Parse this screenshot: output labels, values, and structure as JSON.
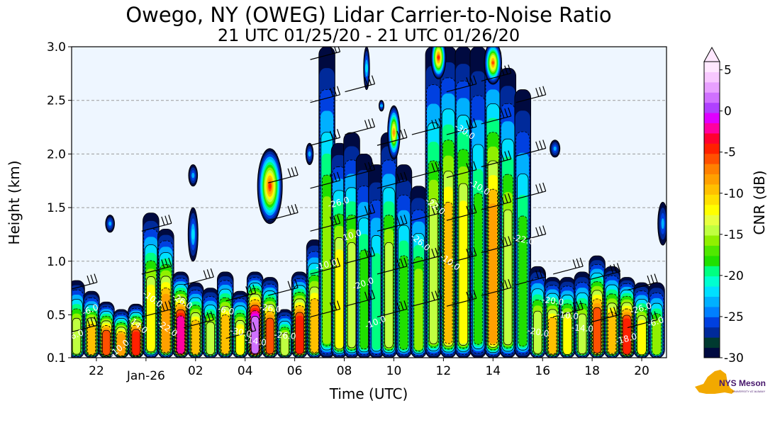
{
  "chart_data": {
    "type": "heatmap",
    "title": "Owego, NY (OWEG) Lidar Carrier-to-Noise Ratio",
    "subtitle": "21 UTC 01/25/20 - 21 UTC 01/26/20",
    "xlabel": "Time (UTC)",
    "ylabel": "Height (km)",
    "colorbar_label": "CNR (dB)",
    "xlim": [
      21,
      45
    ],
    "ylim": [
      0.1,
      3.0
    ],
    "x_ticks": [
      {
        "value": 22,
        "label": "22"
      },
      {
        "value": 24,
        "label": "Jan-26"
      },
      {
        "value": 26,
        "label": "02"
      },
      {
        "value": 28,
        "label": "04"
      },
      {
        "value": 30,
        "label": "06"
      },
      {
        "value": 32,
        "label": "08"
      },
      {
        "value": 34,
        "label": "10"
      },
      {
        "value": 36,
        "label": "12"
      },
      {
        "value": 38,
        "label": "14"
      },
      {
        "value": 40,
        "label": "16"
      },
      {
        "value": 42,
        "label": "18"
      },
      {
        "value": 44,
        "label": "20"
      }
    ],
    "y_ticks": [
      {
        "value": 0.1,
        "label": "0.1"
      },
      {
        "value": 0.5,
        "label": "0.5"
      },
      {
        "value": 1.0,
        "label": "1.0"
      },
      {
        "value": 1.5,
        "label": "1.5"
      },
      {
        "value": 2.0,
        "label": "2.0"
      },
      {
        "value": 2.5,
        "label": "2.5"
      },
      {
        "value": 3.0,
        "label": "3.0"
      }
    ],
    "grid": "horizontal dashed",
    "colorbar": {
      "range": [
        -30,
        6
      ],
      "ticks": [
        {
          "value": 5,
          "label": "5"
        },
        {
          "value": 0,
          "label": "0"
        },
        {
          "value": -5,
          "label": "-5"
        },
        {
          "value": -10,
          "label": "-10"
        },
        {
          "value": -15,
          "label": "-15"
        },
        {
          "value": -20,
          "label": "-20"
        },
        {
          "value": -25,
          "label": "-25"
        },
        {
          "value": -30,
          "label": "-30"
        }
      ],
      "colors": [
        "#000a40",
        "#003a30",
        "#002a9a",
        "#0040e0",
        "#0080ff",
        "#00b0ff",
        "#00e0ff",
        "#00ffd0",
        "#00ff80",
        "#20e000",
        "#50e800",
        "#90f000",
        "#c0ff40",
        "#e8ff40",
        "#ffff00",
        "#ffe000",
        "#ffc000",
        "#ffa000",
        "#ff8000",
        "#ff5000",
        "#ff2000",
        "#ff0030",
        "#ff00a0",
        "#e000ff",
        "#b040ff",
        "#d070ff",
        "#e8a0ff",
        "#f8c8ff",
        "#ffe8ff"
      ]
    },
    "background_color": "#eef6ff",
    "contour_labels": [
      "-10.0",
      "-6.0",
      "-10.0",
      "-26.0",
      "-22.0",
      "-18.0",
      "-14.0",
      "-30.0",
      "-26.0",
      "-22.0",
      "-20.0",
      "-26.0",
      "-10.0",
      "-14.0",
      "-10.0",
      "-10.0",
      "-20.0",
      "-6.0",
      "-22.0",
      "-26.0",
      "-20.0",
      "-30.0",
      "-10.0",
      "-6.0",
      "-26.0",
      "-26.0",
      "-10.0",
      "-10.0",
      "-14.0",
      "-6.0"
    ],
    "cloud_columns": [
      {
        "t": 21.2,
        "base": 0.1,
        "top": 0.82,
        "peak": -14
      },
      {
        "t": 21.8,
        "base": 0.1,
        "top": 0.72,
        "peak": -10
      },
      {
        "t": 22.4,
        "base": 0.1,
        "top": 0.62,
        "peak": -6
      },
      {
        "t": 23.0,
        "base": 0.1,
        "top": 0.55,
        "peak": -8
      },
      {
        "t": 23.6,
        "base": 0.1,
        "top": 0.6,
        "peak": -3
      },
      {
        "t": 24.2,
        "base": 0.1,
        "top": 1.45,
        "peak": -12
      },
      {
        "t": 24.8,
        "base": 0.1,
        "top": 1.3,
        "peak": -8
      },
      {
        "t": 25.4,
        "base": 0.1,
        "top": 0.9,
        "peak": -2
      },
      {
        "t": 26.0,
        "base": 0.1,
        "top": 0.8,
        "peak": -10
      },
      {
        "t": 26.6,
        "base": 0.1,
        "top": 0.75,
        "peak": -14
      },
      {
        "t": 27.2,
        "base": 0.1,
        "top": 0.9,
        "peak": -10
      },
      {
        "t": 27.8,
        "base": 0.1,
        "top": 0.72,
        "peak": -12
      },
      {
        "t": 28.4,
        "base": 0.1,
        "top": 0.9,
        "peak": 2
      },
      {
        "t": 29.0,
        "base": 0.1,
        "top": 0.85,
        "peak": -6
      },
      {
        "t": 29.6,
        "base": 0.1,
        "top": 0.55,
        "peak": -14
      },
      {
        "t": 30.2,
        "base": 0.1,
        "top": 0.9,
        "peak": -4
      },
      {
        "t": 30.8,
        "base": 0.1,
        "top": 1.2,
        "peak": -10
      },
      {
        "t": 31.3,
        "base": 0.1,
        "top": 3.0,
        "peak": -16
      },
      {
        "t": 31.8,
        "base": 0.1,
        "top": 2.1,
        "peak": -12
      },
      {
        "t": 32.3,
        "base": 0.1,
        "top": 2.2,
        "peak": -14
      },
      {
        "t": 32.8,
        "base": 0.1,
        "top": 2.0,
        "peak": -18
      },
      {
        "t": 33.3,
        "base": 0.1,
        "top": 1.9,
        "peak": -20
      },
      {
        "t": 33.8,
        "base": 0.1,
        "top": 2.2,
        "peak": -14
      },
      {
        "t": 34.4,
        "base": 0.1,
        "top": 1.9,
        "peak": -18
      },
      {
        "t": 35.0,
        "base": 0.1,
        "top": 1.7,
        "peak": -16
      },
      {
        "t": 35.6,
        "base": 0.1,
        "top": 3.0,
        "peak": -14
      },
      {
        "t": 36.2,
        "base": 0.1,
        "top": 3.0,
        "peak": -10
      },
      {
        "t": 36.8,
        "base": 0.1,
        "top": 3.0,
        "peak": -12
      },
      {
        "t": 37.4,
        "base": 0.1,
        "top": 3.0,
        "peak": -18
      },
      {
        "t": 38.0,
        "base": 0.1,
        "top": 3.0,
        "peak": -8
      },
      {
        "t": 38.6,
        "base": 0.1,
        "top": 2.8,
        "peak": -14
      },
      {
        "t": 39.2,
        "base": 0.1,
        "top": 2.6,
        "peak": -18
      },
      {
        "t": 39.8,
        "base": 0.1,
        "top": 0.95,
        "peak": -14
      },
      {
        "t": 40.4,
        "base": 0.1,
        "top": 0.85,
        "peak": -10
      },
      {
        "t": 41.0,
        "base": 0.1,
        "top": 0.85,
        "peak": -12
      },
      {
        "t": 41.6,
        "base": 0.1,
        "top": 0.9,
        "peak": -14
      },
      {
        "t": 42.2,
        "base": 0.1,
        "top": 1.05,
        "peak": -6
      },
      {
        "t": 42.8,
        "base": 0.1,
        "top": 0.95,
        "peak": -10
      },
      {
        "t": 43.4,
        "base": 0.1,
        "top": 0.85,
        "peak": -4
      },
      {
        "t": 44.0,
        "base": 0.1,
        "top": 0.8,
        "peak": -12
      },
      {
        "t": 44.6,
        "base": 0.1,
        "top": 0.8,
        "peak": -16
      }
    ],
    "cloud_blobs": [
      {
        "t": 22.55,
        "h": 1.35,
        "dt": 0.18,
        "dh": 0.08,
        "peak": -24
      },
      {
        "t": 25.9,
        "h": 1.8,
        "dt": 0.18,
        "dh": 0.1,
        "peak": -24
      },
      {
        "t": 25.9,
        "h": 1.25,
        "dt": 0.2,
        "dh": 0.25,
        "peak": -22
      },
      {
        "t": 29.0,
        "h": 1.7,
        "dt": 0.5,
        "dh": 0.35,
        "peak": -4
      },
      {
        "t": 30.6,
        "h": 2.0,
        "dt": 0.15,
        "dh": 0.1,
        "peak": -24
      },
      {
        "t": 32.9,
        "h": 2.8,
        "dt": 0.12,
        "dh": 0.2,
        "peak": -22
      },
      {
        "t": 34.0,
        "h": 2.2,
        "dt": 0.25,
        "dh": 0.25,
        "peak": -8
      },
      {
        "t": 33.5,
        "h": 2.45,
        "dt": 0.1,
        "dh": 0.05,
        "peak": -24
      },
      {
        "t": 40.5,
        "h": 2.05,
        "dt": 0.2,
        "dh": 0.08,
        "peak": -24
      },
      {
        "t": 44.85,
        "h": 1.35,
        "dt": 0.2,
        "dh": 0.2,
        "peak": -24
      },
      {
        "t": 35.8,
        "h": 2.9,
        "dt": 0.3,
        "dh": 0.2,
        "peak": -4
      },
      {
        "t": 38.0,
        "h": 2.85,
        "dt": 0.35,
        "dh": 0.2,
        "peak": -6
      }
    ],
    "wind_barbs": [
      {
        "t": 21.4,
        "h": 0.75
      },
      {
        "t": 21.4,
        "h": 0.35
      },
      {
        "t": 24.4,
        "h": 1.3
      },
      {
        "t": 24.4,
        "h": 0.9
      },
      {
        "t": 24.4,
        "h": 0.5
      },
      {
        "t": 26.1,
        "h": 0.8
      },
      {
        "t": 26.1,
        "h": 0.4
      },
      {
        "t": 27.8,
        "h": 0.65
      },
      {
        "t": 27.8,
        "h": 0.3
      },
      {
        "t": 29.5,
        "h": 1.75
      },
      {
        "t": 29.5,
        "h": 1.4
      },
      {
        "t": 29.5,
        "h": 0.7
      },
      {
        "t": 31.2,
        "h": 2.9
      },
      {
        "t": 31.2,
        "h": 2.5
      },
      {
        "t": 31.2,
        "h": 2.1
      },
      {
        "t": 31.2,
        "h": 1.7
      },
      {
        "t": 31.2,
        "h": 1.3
      },
      {
        "t": 31.2,
        "h": 0.9
      },
      {
        "t": 31.2,
        "h": 0.5
      },
      {
        "t": 32.6,
        "h": 2.6
      },
      {
        "t": 32.6,
        "h": 2.2
      },
      {
        "t": 32.6,
        "h": 1.8
      },
      {
        "t": 32.6,
        "h": 1.4
      },
      {
        "t": 32.6,
        "h": 1.0
      },
      {
        "t": 32.6,
        "h": 0.6
      },
      {
        "t": 33.9,
        "h": 2.1
      },
      {
        "t": 33.9,
        "h": 1.7
      },
      {
        "t": 33.9,
        "h": 1.3
      },
      {
        "t": 33.9,
        "h": 0.9
      },
      {
        "t": 33.9,
        "h": 0.5
      },
      {
        "t": 35.3,
        "h": 2.2
      },
      {
        "t": 35.3,
        "h": 1.8
      },
      {
        "t": 35.3,
        "h": 1.4
      },
      {
        "t": 35.3,
        "h": 1.0
      },
      {
        "t": 35.3,
        "h": 0.6
      },
      {
        "t": 36.7,
        "h": 2.6
      },
      {
        "t": 36.7,
        "h": 2.2
      },
      {
        "t": 36.7,
        "h": 1.8
      },
      {
        "t": 36.7,
        "h": 1.4
      },
      {
        "t": 36.7,
        "h": 1.0
      },
      {
        "t": 36.7,
        "h": 0.6
      },
      {
        "t": 38.1,
        "h": 2.7
      },
      {
        "t": 38.1,
        "h": 2.3
      },
      {
        "t": 38.1,
        "h": 1.9
      },
      {
        "t": 38.1,
        "h": 1.5
      },
      {
        "t": 38.1,
        "h": 1.1
      },
      {
        "t": 38.1,
        "h": 0.7
      },
      {
        "t": 39.5,
        "h": 2.5
      },
      {
        "t": 39.5,
        "h": 2.0
      },
      {
        "t": 39.5,
        "h": 1.6
      },
      {
        "t": 39.5,
        "h": 1.2
      },
      {
        "t": 39.5,
        "h": 0.8
      },
      {
        "t": 41.0,
        "h": 0.9
      },
      {
        "t": 41.0,
        "h": 0.5
      },
      {
        "t": 42.5,
        "h": 0.85
      },
      {
        "t": 42.5,
        "h": 0.45
      },
      {
        "t": 44.0,
        "h": 0.75
      },
      {
        "t": 44.0,
        "h": 0.4
      }
    ]
  },
  "logo": {
    "text_main": "NYS Mesonet",
    "text_sub": "UNIVERSITY AT ALBANY",
    "colors": {
      "state_shape": "#f2a900",
      "text": "#46166b"
    }
  }
}
